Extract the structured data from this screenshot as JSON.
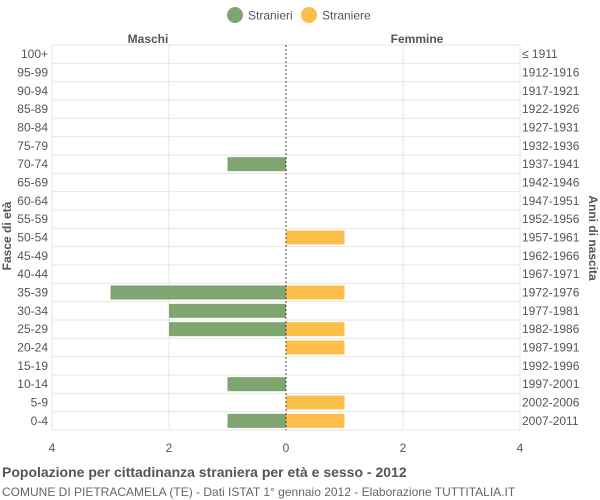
{
  "chart_data": {
    "type": "bar",
    "orientation": "horizontal-population-pyramid",
    "title": "Popolazione per cittadinanza straniera per età e sesso - 2012",
    "subtitle": "COMUNE DI PIETRACAMELA (TE) - Dati ISTAT 1° gennaio 2012 - Elaborazione TUTTITALIA.IT",
    "left_header": "Maschi",
    "right_header": "Femmine",
    "ylabel_left": "Fasce di età",
    "ylabel_right": "Anni di nascita",
    "xlim": [
      -4,
      4
    ],
    "x_ticks": [
      -4,
      -2,
      0,
      2,
      4
    ],
    "x_tick_labels": [
      "4",
      "2",
      "0",
      "2",
      "4"
    ],
    "legend_position": "top-center",
    "grid": true,
    "categories": [
      "100+",
      "95-99",
      "90-94",
      "85-89",
      "80-84",
      "75-79",
      "70-74",
      "65-69",
      "60-64",
      "55-59",
      "50-54",
      "45-49",
      "40-44",
      "35-39",
      "30-34",
      "25-29",
      "20-24",
      "15-19",
      "10-14",
      "5-9",
      "0-4"
    ],
    "birth_years": [
      "≤ 1911",
      "1912-1916",
      "1917-1921",
      "1922-1926",
      "1927-1931",
      "1932-1936",
      "1937-1941",
      "1942-1946",
      "1947-1951",
      "1952-1956",
      "1957-1961",
      "1962-1966",
      "1967-1971",
      "1972-1976",
      "1977-1981",
      "1982-1986",
      "1987-1991",
      "1992-1996",
      "1997-2001",
      "2002-2006",
      "2007-2011"
    ],
    "series": [
      {
        "name": "Stranieri",
        "color": "#7fa571",
        "values": [
          0,
          0,
          0,
          0,
          0,
          0,
          1,
          0,
          0,
          0,
          0,
          0,
          0,
          3,
          2,
          2,
          0,
          0,
          1,
          0,
          1
        ]
      },
      {
        "name": "Straniere",
        "color": "#fdbf4a",
        "values": [
          0,
          0,
          0,
          0,
          0,
          0,
          0,
          0,
          0,
          0,
          1,
          0,
          0,
          1,
          0,
          1,
          1,
          0,
          0,
          1,
          1
        ]
      }
    ]
  }
}
